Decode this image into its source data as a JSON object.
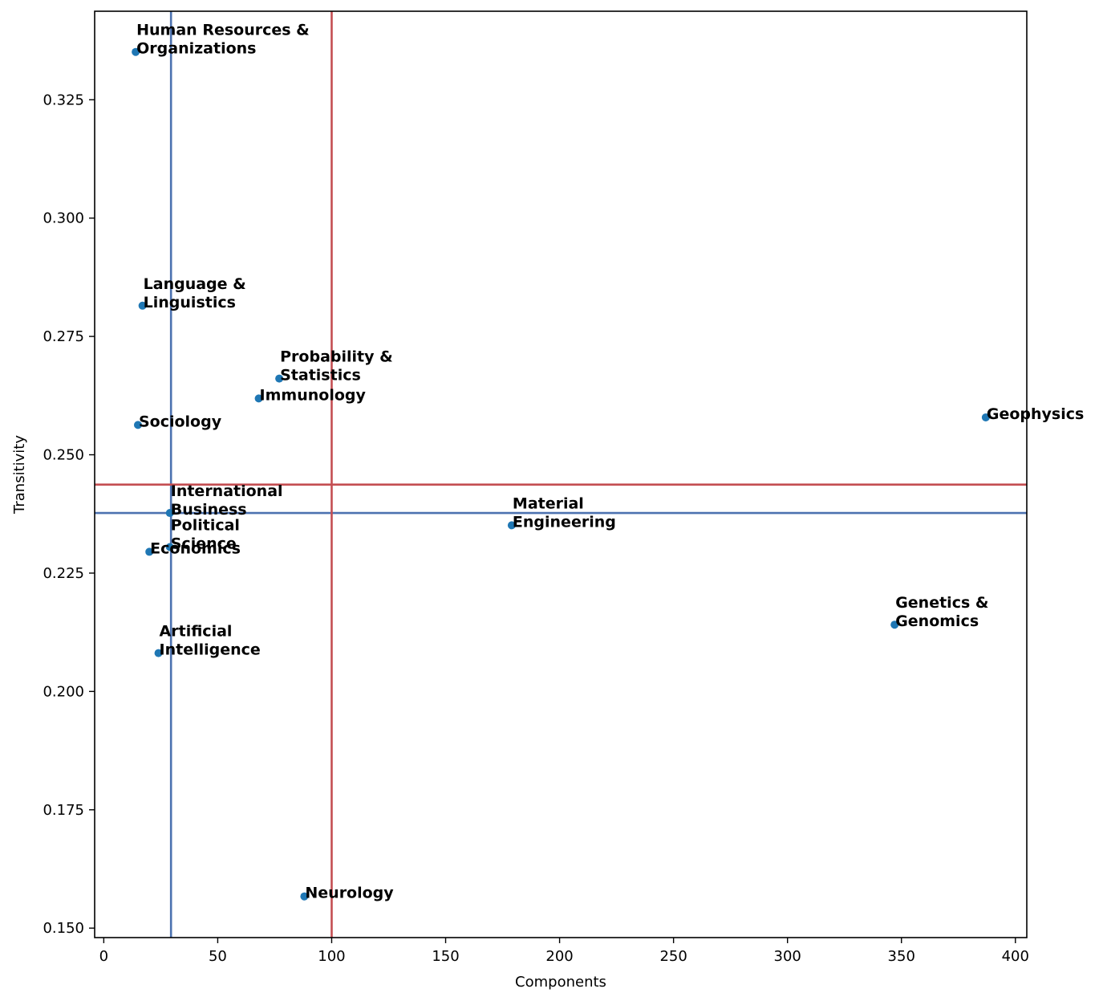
{
  "chart_data": {
    "type": "scatter",
    "title": "",
    "xlabel": "Components",
    "ylabel": "Transitivity",
    "xlim": [
      -4,
      405
    ],
    "ylim": [
      0.148,
      0.3437
    ],
    "xticks": [
      0,
      50,
      100,
      150,
      200,
      250,
      300,
      350,
      400
    ],
    "xtick_labels": [
      "0",
      "50",
      "100",
      "150",
      "200",
      "250",
      "300",
      "350",
      "400"
    ],
    "yticks": [
      0.15,
      0.175,
      0.2,
      0.225,
      0.25,
      0.275,
      0.3,
      0.325
    ],
    "ytick_labels": [
      "0.150",
      "0.175",
      "0.200",
      "0.225",
      "0.250",
      "0.275",
      "0.300",
      "0.325"
    ],
    "grid": false,
    "point_color": "#1f77b4",
    "reference_lines": {
      "red": {
        "color": "#c44e52",
        "x": 100,
        "y": 0.2437
      },
      "blue": {
        "color": "#4c72b0",
        "x": 29.5,
        "y": 0.2377
      }
    },
    "points": [
      {
        "x": 14,
        "y": 0.3351,
        "label": [
          "Human Resources &",
          "Organizations"
        ]
      },
      {
        "x": 17,
        "y": 0.2815,
        "label": [
          "Language &",
          "Linguistics"
        ]
      },
      {
        "x": 77,
        "y": 0.2661,
        "label": [
          "Probability &",
          "Statistics"
        ]
      },
      {
        "x": 68,
        "y": 0.2619,
        "label": [
          "Immunology"
        ]
      },
      {
        "x": 15,
        "y": 0.2563,
        "label": [
          "Sociology"
        ]
      },
      {
        "x": 387,
        "y": 0.2579,
        "label": [
          "Geophysics"
        ]
      },
      {
        "x": 29,
        "y": 0.2377,
        "label": [
          "International",
          "Business"
        ]
      },
      {
        "x": 29,
        "y": 0.2305,
        "label": [
          "Political",
          "Science"
        ]
      },
      {
        "x": 20,
        "y": 0.2295,
        "label": [
          "Economics"
        ]
      },
      {
        "x": 179,
        "y": 0.2351,
        "label": [
          "Material",
          "Engineering"
        ]
      },
      {
        "x": 347,
        "y": 0.2141,
        "label": [
          "Genetics &",
          "Genomics"
        ]
      },
      {
        "x": 24,
        "y": 0.2081,
        "label": [
          "Artificial",
          "Intelligence"
        ]
      },
      {
        "x": 88,
        "y": 0.1567,
        "label": [
          "Neurology"
        ]
      }
    ]
  }
}
